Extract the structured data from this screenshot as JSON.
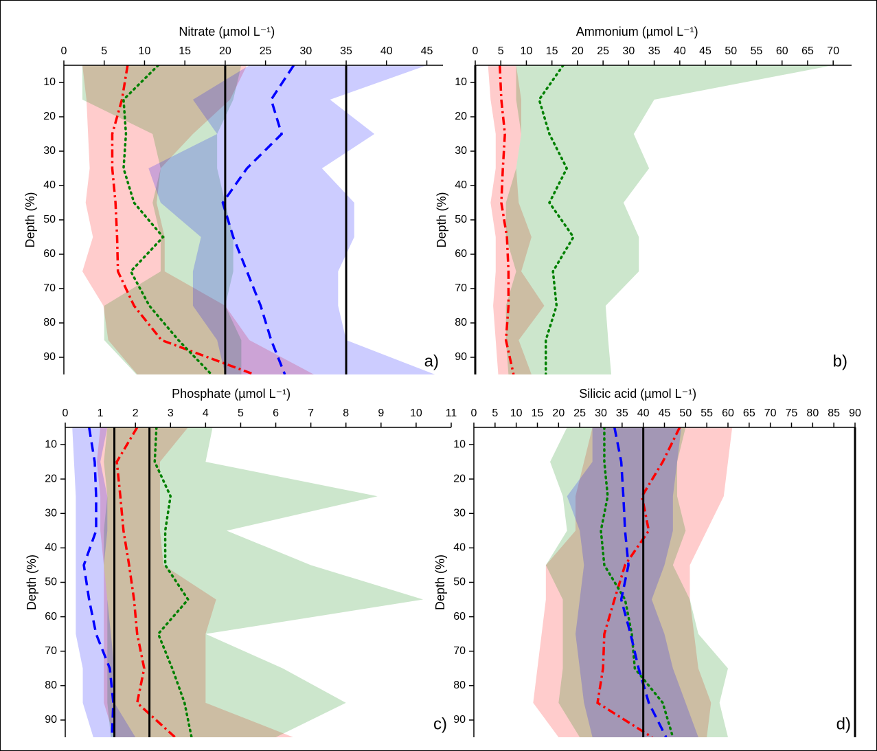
{
  "chart_data": [
    {
      "type": "line",
      "title": "Nitrate (µmol L⁻¹)",
      "y_label": "Depth (%)",
      "label": "a)",
      "y": [
        5,
        15,
        25,
        35,
        45,
        55,
        65,
        75,
        85,
        95
      ],
      "xlim": [
        0,
        47
      ],
      "ylim": [
        5,
        95
      ],
      "xticks": [
        0,
        5,
        10,
        15,
        20,
        25,
        30,
        35,
        40,
        45
      ],
      "yticks": [
        10,
        20,
        30,
        40,
        50,
        60,
        70,
        80,
        90
      ],
      "vlines": [
        20,
        35
      ],
      "series": [
        {
          "color": "#ff0000",
          "dash": "dash-dot",
          "values": [
            7.9,
            7.2,
            6.0,
            6.0,
            6.4,
            6.6,
            6.7,
            8.7,
            12.1,
            23.6
          ],
          "low": [
            2.3,
            2.8,
            3.0,
            3.2,
            2.7,
            3.6,
            2.3,
            4.9,
            5.5,
            9.1
          ],
          "high": [
            22.7,
            20.6,
            16,
            12,
            11.5,
            12.5,
            12.5,
            20,
            23,
            31
          ]
        },
        {
          "color": "#008000",
          "dash": "dotted",
          "values": [
            11.7,
            7.4,
            7.7,
            7.4,
            8.7,
            12.3,
            8.3,
            10.6,
            14.2,
            18.3
          ],
          "low": [
            2.3,
            2.3,
            11,
            12,
            11,
            12,
            12,
            5,
            5,
            9
          ],
          "high": [
            22,
            21,
            19,
            19,
            20,
            21,
            21,
            20,
            22,
            22
          ]
        },
        {
          "color": "#0000ff",
          "dash": "dashed",
          "values": [
            28.5,
            25.7,
            27,
            22.7,
            19.7,
            21,
            22.7,
            24.4,
            25.7,
            27.4
          ],
          "low": [
            23,
            16,
            19,
            10.5,
            12,
            17,
            16,
            16,
            19,
            20
          ],
          "high": [
            45,
            33,
            38.5,
            32,
            36,
            36,
            34,
            34,
            35,
            46
          ]
        }
      ]
    },
    {
      "type": "line",
      "title": "Ammonium (µmol L⁻¹)",
      "y_label": "Depth (%)",
      "label": "b)",
      "y": [
        5,
        15,
        25,
        35,
        45,
        55,
        65,
        75,
        85,
        95
      ],
      "xlim": [
        0,
        73.6
      ],
      "ylim": [
        5,
        95
      ],
      "xticks": [
        0,
        5,
        10,
        15,
        20,
        25,
        30,
        35,
        40,
        45,
        50,
        55,
        60,
        65,
        70
      ],
      "yticks": [
        10,
        20,
        30,
        40,
        50,
        60,
        70,
        80,
        90
      ],
      "vlines": [
        0
      ],
      "series": [
        {
          "color": "#ff0000",
          "dash": "dash-dot",
          "values": [
            4.8,
            5.1,
            5.8,
            5.4,
            5.1,
            6.2,
            6.5,
            6.5,
            6.0,
            7.5
          ],
          "low": [
            2.5,
            3,
            4,
            4,
            3,
            4,
            4,
            3.5,
            4,
            4.5
          ],
          "high": [
            8,
            9,
            9,
            8,
            8.5,
            11,
            9,
            13.5,
            8.5,
            11
          ]
        },
        {
          "color": "#008000",
          "dash": "dotted",
          "values": [
            17.2,
            12.5,
            14.5,
            17.9,
            14.5,
            19.2,
            15.2,
            15.9,
            13.8,
            13.8
          ],
          "low": [
            8,
            8,
            9,
            8,
            6,
            6,
            8,
            6,
            6,
            6.5
          ],
          "high": [
            70,
            35,
            31,
            34,
            29,
            32,
            32,
            25.5,
            26,
            26.6
          ]
        }
      ]
    },
    {
      "type": "line",
      "title": "Phosphate (µmol L⁻¹)",
      "y_label": "Depth (%)",
      "label": "c)",
      "y": [
        5,
        15,
        25,
        35,
        45,
        55,
        65,
        75,
        85,
        95
      ],
      "xlim": [
        0,
        11
      ],
      "ylim": [
        5,
        95
      ],
      "xticks": [
        0,
        1,
        2,
        3,
        4,
        5,
        6,
        7,
        8,
        9,
        10,
        11
      ],
      "yticks": [
        10,
        20,
        30,
        40,
        50,
        60,
        70,
        80,
        90
      ],
      "vlines": [
        1.4,
        2.4
      ],
      "series": [
        {
          "color": "#ff0000",
          "dash": "dash-dot",
          "values": [
            2.05,
            1.47,
            1.57,
            1.66,
            1.82,
            1.96,
            2.05,
            2.25,
            2.05,
            3.13
          ],
          "low": [
            1.0,
            0.9,
            1.0,
            1.0,
            1.1,
            1.1,
            1.1,
            1.1,
            1.1,
            1.4
          ],
          "high": [
            3.5,
            2.7,
            2.7,
            2.7,
            2.8,
            4.3,
            4.0,
            4.0,
            4.0,
            6.5
          ]
        },
        {
          "color": "#008000",
          "dash": "dotted",
          "values": [
            2.6,
            2.55,
            3.0,
            2.85,
            2.85,
            3.5,
            2.65,
            3.05,
            3.4,
            3.6
          ],
          "low": [
            1.2,
            1.1,
            1.2,
            1.1,
            1.1,
            1.2,
            1.2,
            1.2,
            1.2,
            1.3
          ],
          "high": [
            4.2,
            4.0,
            8.9,
            4.6,
            7,
            10.2,
            4.0,
            6.2,
            8.0,
            6.0
          ]
        },
        {
          "color": "#0000ff",
          "dash": "dashed",
          "values": [
            0.68,
            0.84,
            0.88,
            0.88,
            0.53,
            0.68,
            0.88,
            1.27,
            1.37,
            1.33
          ],
          "low": [
            0.2,
            0.25,
            0.3,
            0.3,
            0.3,
            0.3,
            0.3,
            0.5,
            0.5,
            0.8
          ],
          "high": [
            1.2,
            1.0,
            1.2,
            1.2,
            1.1,
            1.2,
            1.3,
            1.4,
            1.4,
            2.0
          ]
        }
      ]
    },
    {
      "type": "line",
      "title": "Silicic acid (µmol L⁻¹)",
      "y_label": "Depth (%)",
      "label": "d)",
      "y": [
        5,
        15,
        25,
        35,
        45,
        55,
        65,
        75,
        85,
        95
      ],
      "xlim": [
        0,
        90
      ],
      "ylim": [
        5,
        95
      ],
      "xticks": [
        0,
        5,
        10,
        15,
        20,
        25,
        30,
        35,
        40,
        45,
        50,
        55,
        60,
        65,
        70,
        75,
        80,
        85,
        90
      ],
      "yticks": [
        10,
        20,
        30,
        40,
        50,
        60,
        70,
        80,
        90
      ],
      "vlines": [
        40,
        90
      ],
      "series": [
        {
          "color": "#ff0000",
          "dash": "dash-dot",
          "values": [
            48.6,
            44.6,
            39.7,
            41.3,
            35.7,
            33.2,
            30.8,
            30.5,
            29.2,
            42.1
          ],
          "low": [
            28,
            26,
            24,
            24,
            17,
            17,
            16,
            15,
            14,
            20
          ],
          "high": [
            61,
            60,
            59,
            55,
            51,
            51,
            52,
            53,
            56,
            55
          ]
        },
        {
          "color": "#008000",
          "dash": "dotted",
          "values": [
            30.8,
            30.8,
            31.6,
            30,
            30.8,
            35.7,
            37.3,
            38,
            44.6,
            47
          ],
          "low": [
            22,
            18,
            21,
            22,
            17,
            21,
            21,
            21,
            20,
            25
          ],
          "high": [
            50,
            48,
            48,
            50,
            47,
            51,
            53,
            60,
            58,
            60
          ]
        },
        {
          "color": "#0000ff",
          "dash": "dashed",
          "values": [
            33.2,
            34.8,
            35.3,
            35.7,
            36.5,
            34.8,
            37,
            38.9,
            41.3,
            45.4
          ],
          "low": [
            28,
            28,
            22,
            25,
            26,
            25,
            24,
            25,
            26,
            28
          ],
          "high": [
            49,
            48,
            47,
            47,
            45,
            42,
            45,
            47,
            50,
            53
          ]
        }
      ]
    }
  ]
}
